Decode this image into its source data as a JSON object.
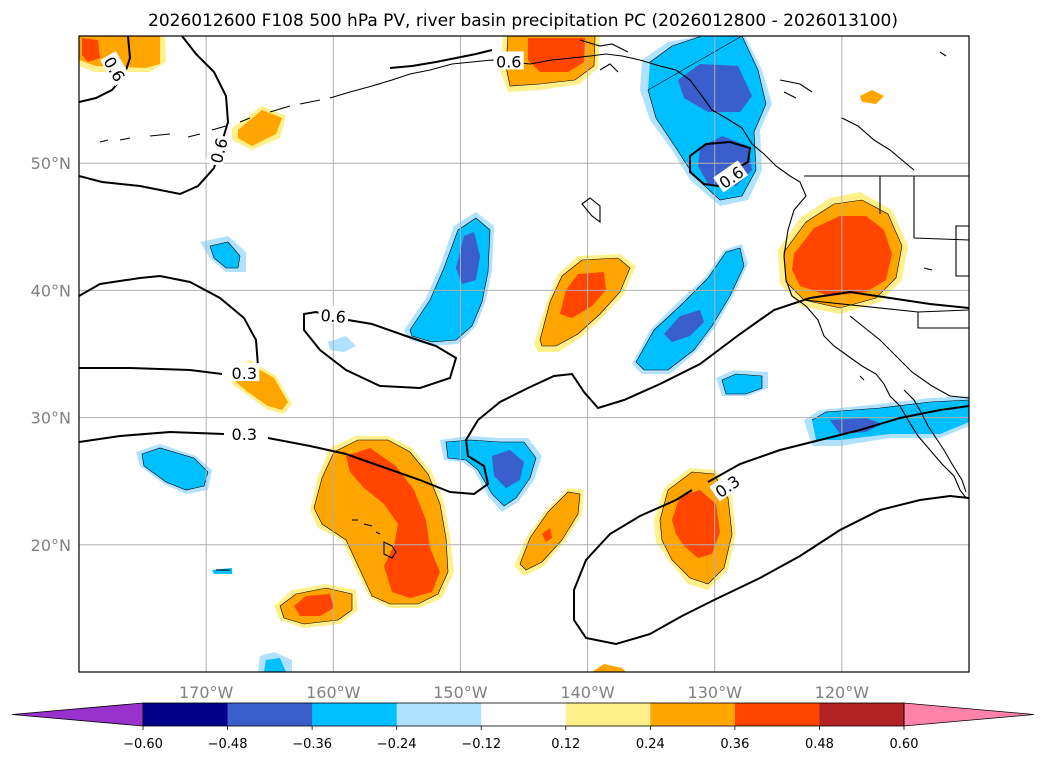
{
  "title": "2026012600 F108 500 hPa PV, river basin precipitation PC (2026012800 - 2026013100)",
  "map": {
    "lon_range": [
      -180,
      -110
    ],
    "lat_range": [
      10,
      60
    ],
    "lon_ticks": [
      {
        "value": -170,
        "label": "170°W"
      },
      {
        "value": -160,
        "label": "160°W"
      },
      {
        "value": -150,
        "label": "150°W"
      },
      {
        "value": -140,
        "label": "140°W"
      },
      {
        "value": -130,
        "label": "130°W"
      },
      {
        "value": -120,
        "label": "120°W"
      }
    ],
    "lat_ticks": [
      {
        "value": 20,
        "label": "20°N"
      },
      {
        "value": 30,
        "label": "30°N"
      },
      {
        "value": 40,
        "label": "40°N"
      },
      {
        "value": 50,
        "label": "50°N"
      }
    ],
    "gridlines": true,
    "pv_contour_levels": [
      0.3,
      0.6
    ],
    "contour_labels": [
      {
        "text": "0.6",
        "lon": -177.2,
        "lat": 57.4,
        "rotate": 60
      },
      {
        "text": "0.6",
        "lon": -169.0,
        "lat": 51.0,
        "rotate": -75
      },
      {
        "text": "0.6",
        "lon": -146.2,
        "lat": 58.0,
        "rotate": 0
      },
      {
        "text": "0.6",
        "lon": -128.7,
        "lat": 48.9,
        "rotate": -35
      },
      {
        "text": "0.6",
        "lon": -160.0,
        "lat": 38.0,
        "rotate": 5
      },
      {
        "text": "0.3",
        "lon": -167.0,
        "lat": 33.5,
        "rotate": 0
      },
      {
        "text": "0.3",
        "lon": -167.0,
        "lat": 28.7,
        "rotate": 0
      },
      {
        "text": "0.3",
        "lon": -129.0,
        "lat": 24.6,
        "rotate": -35
      }
    ]
  },
  "colorbar": {
    "ticks": [
      "-0.60",
      "-0.48",
      "-0.36",
      "-0.24",
      "-0.12",
      "0.12",
      "0.24",
      "0.36",
      "0.48",
      "0.60"
    ],
    "extend": "both",
    "colors": {
      "under": "#9932cc",
      "bins": [
        "#00008b",
        "#3a5fcd",
        "#00bfff",
        "#b0e2ff",
        "#ffffff",
        "#fff08c",
        "#ffa500",
        "#ff4500",
        "#b22222"
      ],
      "over": "#ff82ab"
    }
  },
  "colors": {
    "pos1": "#fff08c",
    "pos2": "#ffa500",
    "pos3": "#ff4500",
    "neg1": "#b0e2ff",
    "neg2": "#00bfff",
    "neg3": "#3a5fcd"
  }
}
